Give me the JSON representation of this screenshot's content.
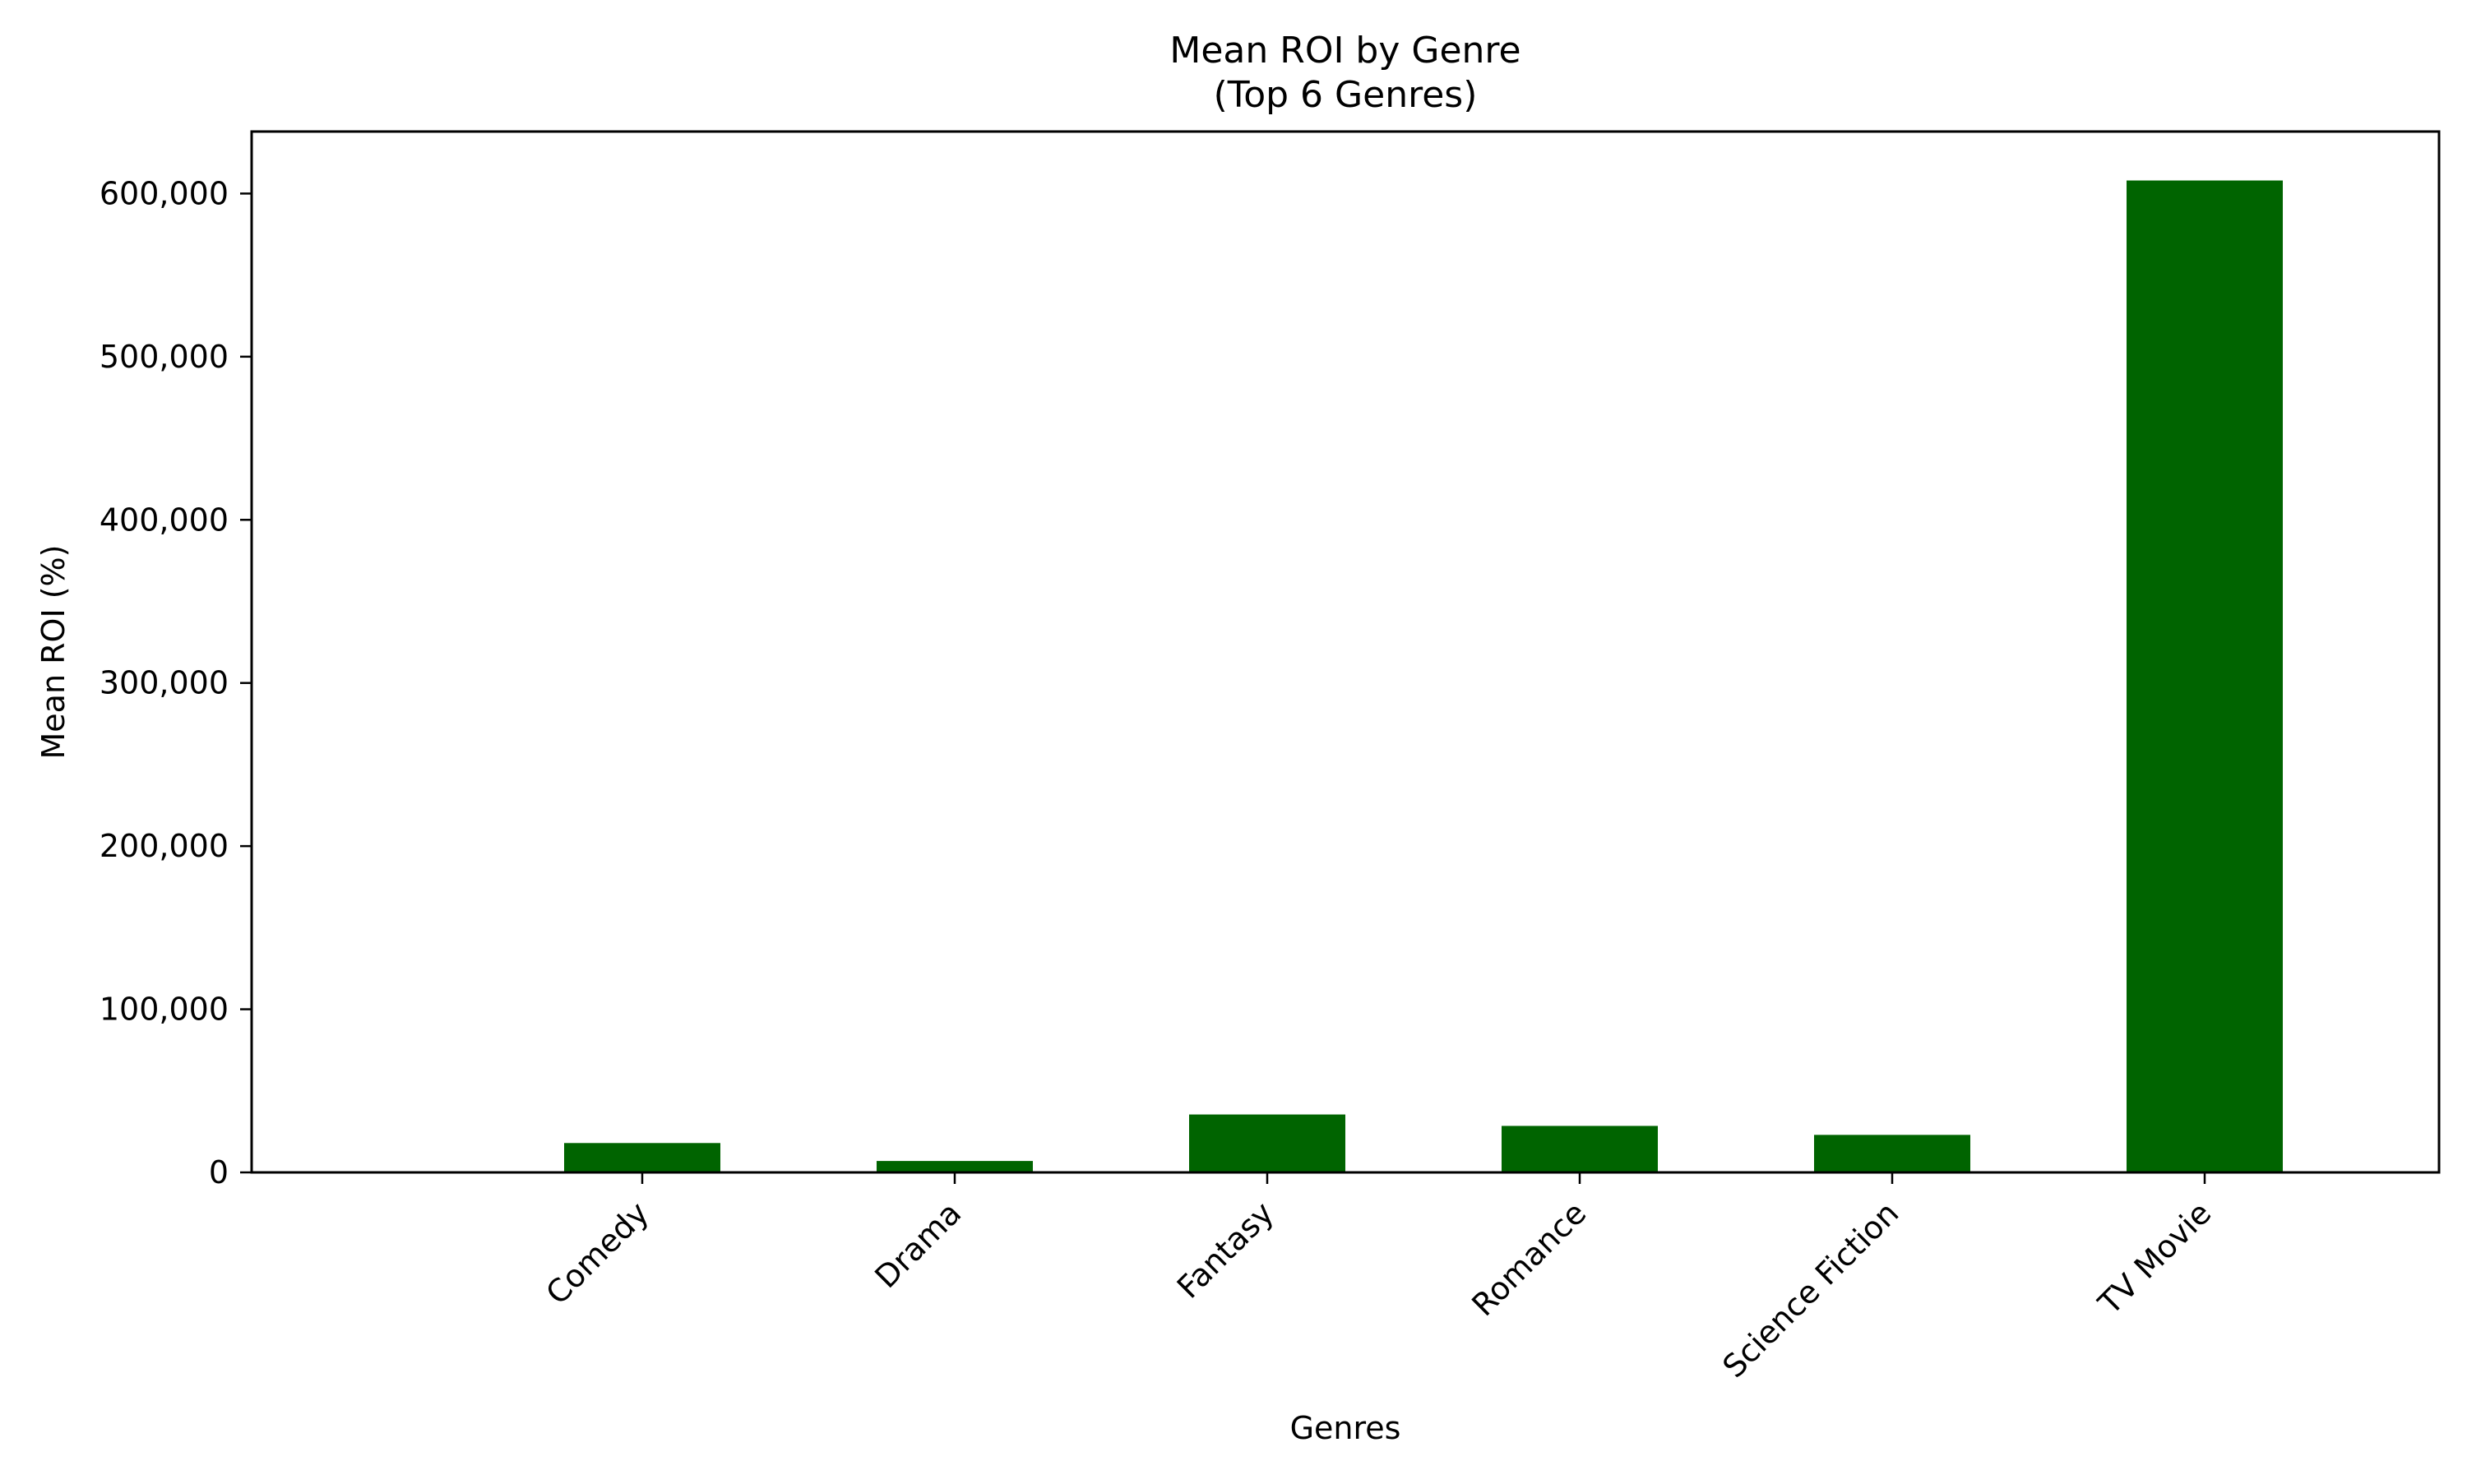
{
  "chart_data": {
    "type": "bar",
    "title": "Mean ROI by Genre",
    "subtitle": "(Top 6 Genres)",
    "xlabel": "Genres",
    "ylabel": "Mean ROI (%)",
    "categories": [
      "Comedy",
      "Drama",
      "Fantasy",
      "Romance",
      "Science Fiction",
      "TV Movie"
    ],
    "values": [
      18000,
      7000,
      35500,
      28500,
      23000,
      608000
    ],
    "ylim": [
      0,
      638000
    ],
    "yticks": [
      0,
      100000,
      200000,
      300000,
      400000,
      500000,
      600000
    ],
    "ytick_labels": [
      "0",
      "100,000",
      "200,000",
      "300,000",
      "400,000",
      "500,000",
      "600,000"
    ],
    "bar_color": "#006400",
    "grid": false,
    "legend": "none"
  }
}
